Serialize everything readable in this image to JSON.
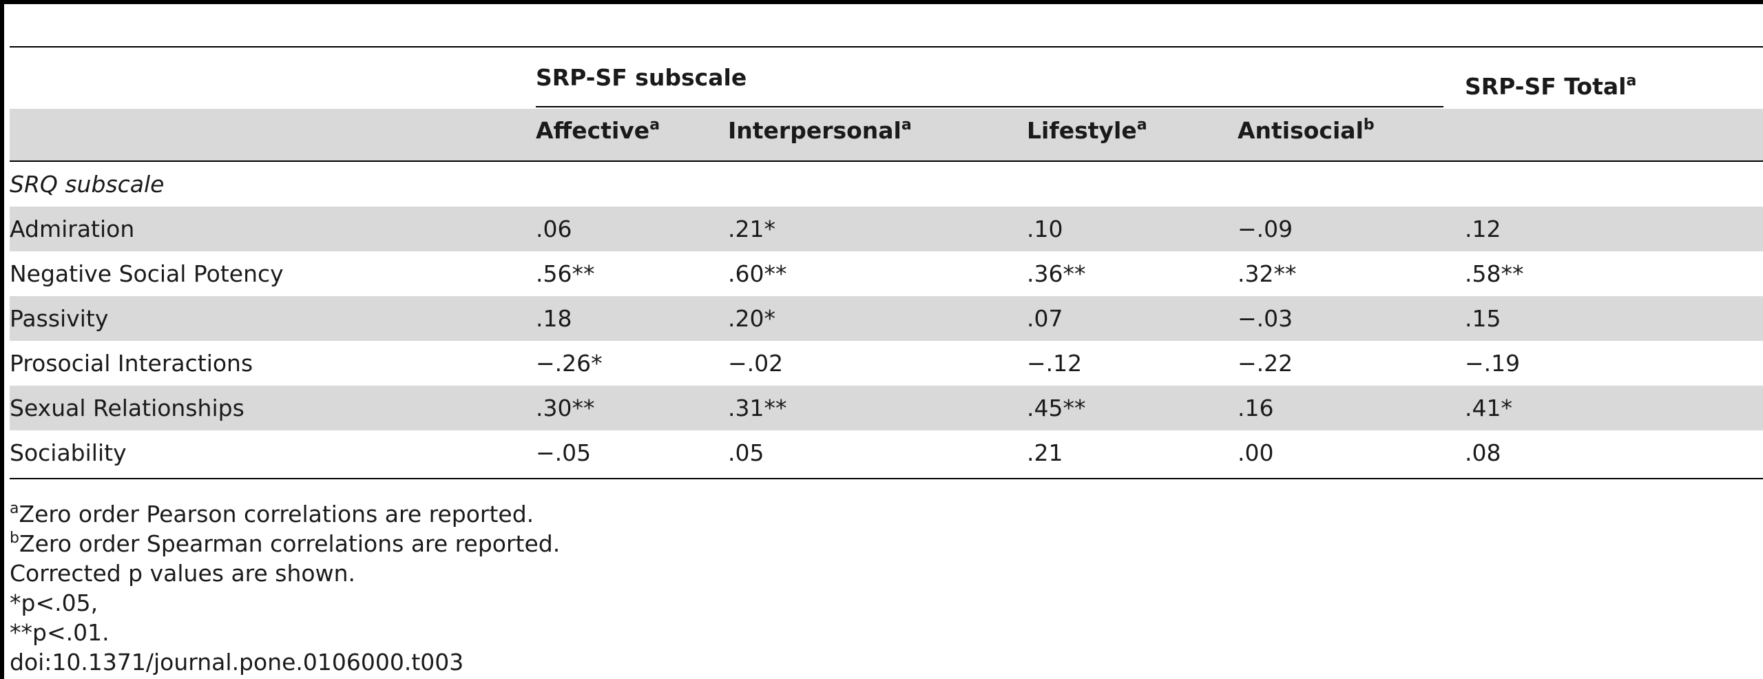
{
  "table": {
    "group_header": "SRP-SF subscale",
    "total_header": {
      "label": "SRP-SF Total",
      "sup": "a"
    },
    "columns": [
      {
        "label": "Affective",
        "sup": "a"
      },
      {
        "label": "Interpersonal",
        "sup": "a"
      },
      {
        "label": "Lifestyle",
        "sup": "a"
      },
      {
        "label": "Antisocial",
        "sup": "b"
      }
    ],
    "section_label": "SRQ subscale",
    "rows": [
      {
        "label": "Admiration",
        "values": [
          ".06",
          ".21*",
          ".10",
          "−.09",
          ".12"
        ]
      },
      {
        "label": "Negative Social Potency",
        "values": [
          ".56**",
          ".60**",
          ".36**",
          ".32**",
          ".58**"
        ]
      },
      {
        "label": "Passivity",
        "values": [
          ".18",
          ".20*",
          ".07",
          "−.03",
          ".15"
        ]
      },
      {
        "label": "Prosocial Interactions",
        "values": [
          "−.26*",
          "−.02",
          "−.12",
          "−.22",
          "−.19"
        ]
      },
      {
        "label": "Sexual Relationships",
        "values": [
          ".30**",
          ".31**",
          ".45**",
          ".16",
          ".41*"
        ]
      },
      {
        "label": "Sociability",
        "values": [
          "−.05",
          ".05",
          ".21",
          ".00",
          ".08"
        ]
      }
    ]
  },
  "footnotes": {
    "a": {
      "sup": "a",
      "text": "Zero order Pearson correlations are reported."
    },
    "b": {
      "sup": "b",
      "text": "Zero order Spearman correlations are reported."
    },
    "corrected": "Corrected p values are shown.",
    "p05": "*p<.05,",
    "p01": "**p<.01.",
    "doi": "doi:10.1371/journal.pone.0106000.t003"
  }
}
